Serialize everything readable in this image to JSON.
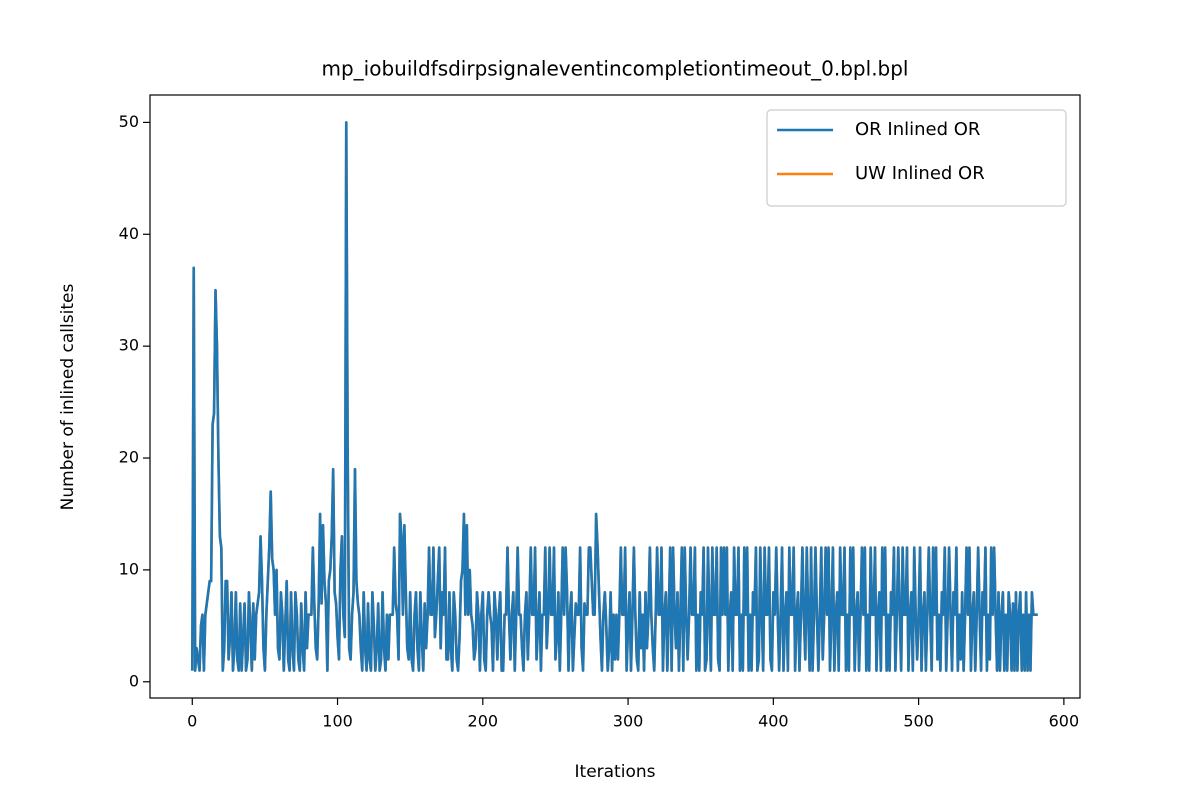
{
  "chart_data": {
    "type": "line",
    "title": "mp_iobuildfsdirpsignaleventincompletiontimeout_0.bpl.bpl",
    "x_label": "Iterations",
    "y_label": "Number of inlined callsites",
    "xlim": [
      -29.1,
      611.1
    ],
    "xticks": [
      0,
      100,
      200,
      300,
      400,
      500,
      600
    ],
    "ylim": [
      -1.45,
      52.45
    ],
    "yticks": [
      0,
      10,
      20,
      30,
      40,
      50
    ],
    "legend": "upper right",
    "series": [
      {
        "name": "UW Inlined OR",
        "color": "#ff7f0e",
        "values": [
          1,
          37,
          1,
          3,
          2,
          1,
          5,
          6,
          1,
          6,
          7,
          8,
          9,
          9,
          23,
          24,
          35,
          30,
          20,
          13,
          12,
          1,
          3,
          9,
          9,
          2,
          4,
          8,
          1,
          3,
          8,
          2,
          1,
          7,
          1,
          4,
          7,
          1,
          2,
          8,
          5,
          1,
          7,
          2,
          6,
          7,
          8,
          13,
          9,
          3,
          1,
          6,
          9,
          12,
          17,
          11,
          10,
          6,
          10,
          3,
          2,
          8,
          6,
          1,
          5,
          9,
          2,
          1,
          8,
          3,
          1,
          8,
          6,
          2,
          1,
          7,
          3,
          1,
          8,
          3,
          6,
          6,
          6,
          12,
          7,
          3,
          2,
          7,
          15,
          7,
          14,
          9,
          7,
          1,
          9,
          10,
          13,
          19,
          8,
          7,
          4,
          2,
          10,
          13,
          6,
          4,
          50,
          20,
          3,
          2,
          6,
          8,
          19,
          9,
          7,
          6,
          3,
          1,
          8,
          3,
          1,
          7,
          2,
          1,
          8,
          5,
          1,
          3,
          7,
          1,
          2,
          8,
          3,
          1,
          6,
          2,
          6,
          6,
          6,
          12,
          7,
          6,
          2,
          15,
          13,
          6,
          14,
          8,
          3,
          2,
          8,
          2,
          1,
          6,
          8,
          3,
          1,
          8,
          4,
          1,
          7,
          3,
          6,
          12,
          6,
          6,
          12,
          4,
          6,
          9,
          12,
          3,
          8,
          6,
          12,
          2,
          2,
          8,
          3,
          1,
          8,
          6,
          2,
          1,
          4,
          9,
          10,
          15,
          6,
          14,
          6,
          10,
          6,
          5,
          2,
          3,
          8,
          6,
          1,
          6,
          8,
          2,
          1,
          6,
          8,
          6,
          5,
          1,
          8,
          6,
          2,
          6,
          8,
          1,
          1,
          6,
          6,
          12,
          6,
          2,
          6,
          8,
          1,
          6,
          12,
          6,
          6,
          3,
          1,
          6,
          8,
          2,
          6,
          12,
          6,
          6,
          12,
          2,
          5,
          8,
          1,
          6,
          6,
          12,
          3,
          6,
          12,
          6,
          6,
          12,
          2,
          4,
          8,
          1,
          6,
          12,
          6,
          12,
          8,
          1,
          6,
          8,
          1,
          4,
          7,
          6,
          6,
          12,
          3,
          1,
          7,
          6,
          6,
          12,
          12,
          9,
          6,
          6,
          15,
          12,
          8,
          4,
          1,
          6,
          8,
          5,
          1,
          3,
          8,
          1,
          6,
          2,
          6,
          2,
          6,
          12,
          6,
          6,
          12,
          1,
          5,
          8,
          1,
          6,
          12,
          6,
          2,
          1,
          8,
          3,
          6,
          1,
          8,
          3,
          6,
          12,
          6,
          3,
          1,
          6,
          12,
          6,
          6,
          12,
          1,
          6,
          8,
          1,
          6,
          12,
          1,
          12,
          6,
          3,
          8,
          1,
          6,
          12,
          1,
          12,
          6,
          2,
          6,
          12,
          6,
          6,
          12,
          1,
          6,
          1,
          8,
          6,
          12,
          1,
          2,
          12,
          6,
          1,
          12,
          6,
          6,
          12,
          2,
          1,
          12,
          6,
          12,
          6,
          12,
          1,
          6,
          8,
          1,
          12,
          6,
          6,
          12,
          1,
          6,
          1,
          12,
          6,
          12,
          1,
          6,
          1,
          8,
          6,
          12,
          1,
          2,
          12,
          6,
          1,
          12,
          6,
          6,
          12,
          2,
          1,
          8,
          6,
          12,
          6,
          1,
          6,
          12,
          1,
          6,
          8,
          1,
          12,
          6,
          6,
          12,
          1,
          6,
          8,
          1,
          6,
          12,
          6,
          2,
          12,
          6,
          1,
          12,
          1,
          6,
          12,
          6,
          1,
          6,
          12,
          2,
          6,
          12,
          6,
          12,
          1,
          6,
          12,
          1,
          6,
          8,
          1,
          12,
          6,
          6,
          12,
          1,
          6,
          1,
          12,
          6,
          12,
          1,
          6,
          8,
          1,
          6,
          12,
          6,
          12,
          1,
          6,
          1,
          12,
          6,
          6,
          12,
          1,
          6,
          8,
          1,
          12,
          6,
          12,
          1,
          6,
          1,
          8,
          6,
          12,
          1,
          6,
          12,
          6,
          1,
          12,
          6,
          6,
          12,
          1,
          6,
          8,
          1,
          12,
          6,
          2,
          6,
          12,
          1,
          6,
          8,
          1,
          6,
          12,
          6,
          1,
          12,
          6,
          12,
          2,
          6,
          1,
          8,
          6,
          12,
          1,
          6,
          12,
          6,
          1,
          8,
          6,
          12,
          1,
          6,
          2,
          8,
          1,
          6,
          12,
          6,
          12,
          1,
          6,
          8,
          1,
          6,
          12,
          6,
          1,
          8,
          6,
          12,
          1,
          6,
          2,
          12,
          6,
          12,
          6,
          1,
          8,
          1,
          6,
          8,
          1,
          6,
          1,
          8,
          6,
          1,
          7,
          1,
          8,
          1,
          6,
          8,
          1,
          6,
          1,
          8,
          1,
          6,
          1,
          8,
          6,
          6,
          6,
          6
        ]
      },
      {
        "name": "OR Inlined OR",
        "color": "#1f77b4",
        "values": [
          1,
          37,
          1,
          3,
          2,
          1,
          5,
          6,
          1,
          6,
          7,
          8,
          9,
          9,
          23,
          24,
          35,
          30,
          20,
          13,
          12,
          1,
          3,
          9,
          9,
          2,
          4,
          8,
          1,
          3,
          8,
          2,
          1,
          7,
          1,
          4,
          7,
          1,
          2,
          8,
          5,
          1,
          7,
          2,
          6,
          7,
          8,
          13,
          9,
          3,
          1,
          6,
          9,
          12,
          17,
          11,
          10,
          6,
          10,
          3,
          2,
          8,
          6,
          1,
          5,
          9,
          2,
          1,
          8,
          3,
          1,
          8,
          6,
          2,
          1,
          7,
          3,
          1,
          8,
          3,
          6,
          6,
          6,
          12,
          7,
          3,
          2,
          7,
          15,
          7,
          14,
          9,
          7,
          1,
          9,
          10,
          13,
          19,
          8,
          7,
          4,
          2,
          10,
          13,
          6,
          4,
          50,
          20,
          3,
          2,
          6,
          8,
          19,
          9,
          7,
          6,
          3,
          1,
          8,
          3,
          1,
          7,
          2,
          1,
          8,
          5,
          1,
          3,
          7,
          1,
          2,
          8,
          3,
          1,
          6,
          2,
          6,
          6,
          6,
          12,
          7,
          6,
          2,
          15,
          13,
          6,
          14,
          8,
          3,
          2,
          8,
          2,
          1,
          6,
          8,
          3,
          1,
          8,
          4,
          1,
          7,
          3,
          6,
          12,
          6,
          6,
          12,
          4,
          6,
          9,
          12,
          3,
          8,
          6,
          12,
          2,
          2,
          8,
          3,
          1,
          8,
          6,
          2,
          1,
          4,
          9,
          10,
          15,
          6,
          14,
          6,
          10,
          6,
          5,
          2,
          3,
          8,
          6,
          1,
          6,
          8,
          2,
          1,
          6,
          8,
          6,
          5,
          1,
          8,
          6,
          2,
          6,
          8,
          1,
          1,
          6,
          6,
          12,
          6,
          2,
          6,
          8,
          1,
          6,
          12,
          6,
          6,
          3,
          1,
          6,
          8,
          2,
          6,
          12,
          6,
          6,
          12,
          2,
          5,
          8,
          1,
          6,
          6,
          12,
          3,
          6,
          12,
          6,
          6,
          12,
          2,
          4,
          8,
          1,
          6,
          12,
          6,
          12,
          8,
          1,
          6,
          8,
          1,
          4,
          7,
          6,
          6,
          12,
          3,
          1,
          7,
          6,
          6,
          12,
          12,
          9,
          6,
          6,
          15,
          12,
          8,
          4,
          1,
          6,
          8,
          5,
          1,
          3,
          8,
          1,
          6,
          2,
          6,
          2,
          6,
          12,
          6,
          6,
          12,
          1,
          5,
          8,
          1,
          6,
          12,
          6,
          2,
          1,
          8,
          3,
          6,
          1,
          8,
          3,
          6,
          12,
          6,
          3,
          1,
          6,
          12,
          6,
          6,
          12,
          1,
          6,
          8,
          1,
          6,
          12,
          1,
          12,
          6,
          3,
          8,
          1,
          6,
          12,
          1,
          12,
          6,
          2,
          6,
          12,
          6,
          6,
          12,
          1,
          6,
          1,
          8,
          6,
          12,
          1,
          2,
          12,
          6,
          1,
          12,
          6,
          6,
          12,
          2,
          1,
          12,
          6,
          12,
          6,
          12,
          1,
          6,
          8,
          1,
          12,
          6,
          6,
          12,
          1,
          6,
          1,
          12,
          6,
          12,
          1,
          6,
          1,
          8,
          6,
          12,
          1,
          2,
          12,
          6,
          1,
          12,
          6,
          6,
          12,
          2,
          1,
          8,
          6,
          12,
          6,
          1,
          6,
          12,
          1,
          6,
          8,
          1,
          12,
          6,
          6,
          12,
          1,
          6,
          8,
          1,
          6,
          12,
          6,
          2,
          12,
          6,
          1,
          12,
          1,
          6,
          12,
          6,
          1,
          6,
          12,
          2,
          6,
          12,
          6,
          12,
          1,
          6,
          12,
          1,
          6,
          8,
          1,
          12,
          6,
          6,
          12,
          1,
          6,
          1,
          12,
          6,
          12,
          1,
          6,
          8,
          1,
          6,
          12,
          6,
          12,
          1,
          6,
          1,
          12,
          6,
          6,
          12,
          1,
          6,
          8,
          1,
          12,
          6,
          12,
          1,
          6,
          1,
          8,
          6,
          12,
          1,
          6,
          12,
          6,
          1,
          12,
          6,
          6,
          12,
          1,
          6,
          8,
          1,
          12,
          6,
          2,
          6,
          12,
          1,
          6,
          8,
          1,
          6,
          12,
          6,
          1,
          12,
          6,
          12,
          2,
          6,
          1,
          8,
          6,
          12,
          1,
          6,
          12,
          6,
          1,
          8,
          6,
          12,
          1,
          6,
          2,
          8,
          1,
          6,
          12,
          6,
          12,
          1,
          6,
          8,
          1,
          6,
          12,
          6,
          1,
          8,
          6,
          12,
          1,
          6,
          2,
          12,
          6,
          12,
          6,
          1,
          8,
          1,
          6,
          8,
          1,
          6,
          1,
          8,
          6,
          1,
          7,
          1,
          8,
          1,
          6,
          8,
          1,
          6,
          1,
          8,
          1,
          6,
          1,
          8,
          6,
          6,
          6,
          6
        ]
      }
    ]
  }
}
